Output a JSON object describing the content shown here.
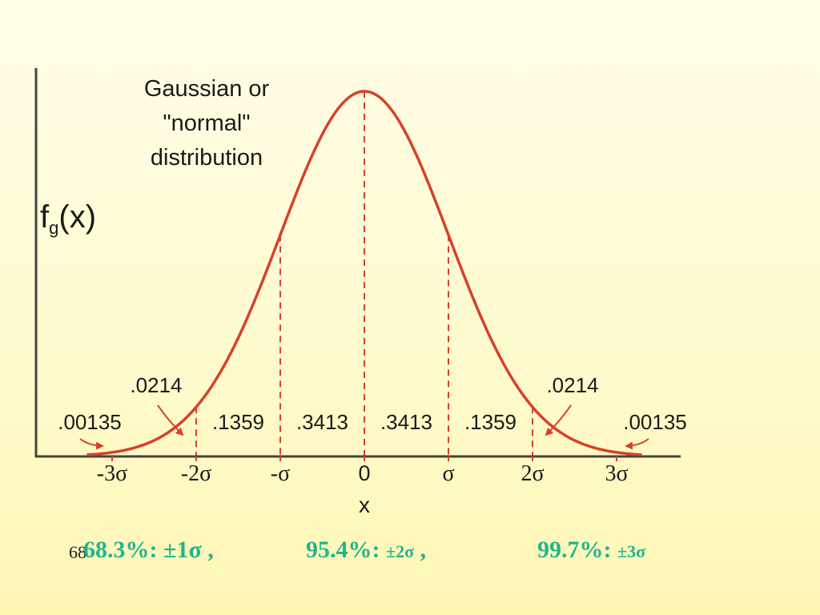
{
  "chart_data": {
    "type": "area",
    "title": "Gaussian or \"normal\" distribution",
    "title_lines": [
      "Gaussian or",
      "\"normal\"",
      "distribution"
    ],
    "ylabel": "f",
    "ylabel_sub": "g",
    "ylabel_tail": "(x)",
    "xlabel": "x",
    "x_ticks": [
      {
        "value": -3,
        "label": "-3σ"
      },
      {
        "value": -2,
        "label": "-2σ"
      },
      {
        "value": -1,
        "label": "-σ"
      },
      {
        "value": 0,
        "label": "0"
      },
      {
        "value": 1,
        "label": "σ"
      },
      {
        "value": 2,
        "label": "2σ"
      },
      {
        "value": 3,
        "label": "3σ"
      }
    ],
    "vlines": [
      -2,
      -1,
      0,
      1,
      2
    ],
    "series": [
      {
        "function": "normal",
        "mean": 0,
        "sd": 1,
        "x_range": [
          -3.3,
          3.3
        ],
        "color": "#d8402a"
      }
    ],
    "regions": [
      {
        "from": -3.5,
        "to": -3,
        "value": ".00135"
      },
      {
        "from": -3,
        "to": -2,
        "value": ".0214"
      },
      {
        "from": -2,
        "to": -1,
        "value": ".1359"
      },
      {
        "from": -1,
        "to": 0,
        "value": ".3413"
      },
      {
        "from": 0,
        "to": 1,
        "value": ".3413"
      },
      {
        "from": 1,
        "to": 2,
        "value": ".1359"
      },
      {
        "from": 2,
        "to": 3,
        "value": ".0214"
      },
      {
        "from": 3,
        "to": 3.5,
        "value": ".00135"
      }
    ],
    "grid": false,
    "legend": "none"
  },
  "footer": {
    "page_number": "68",
    "stats": [
      {
        "percent": "68.3%:",
        "range": "±1σ",
        "sep": " ,"
      },
      {
        "percent": "95.4%:",
        "range": "±2σ",
        "sep": " ,"
      },
      {
        "percent": "99.7%:",
        "range": "±3σ",
        "sep": ""
      }
    ]
  },
  "colors": {
    "curve": "#d8402a",
    "axis": "#444444",
    "stats": "#1fb58f"
  }
}
